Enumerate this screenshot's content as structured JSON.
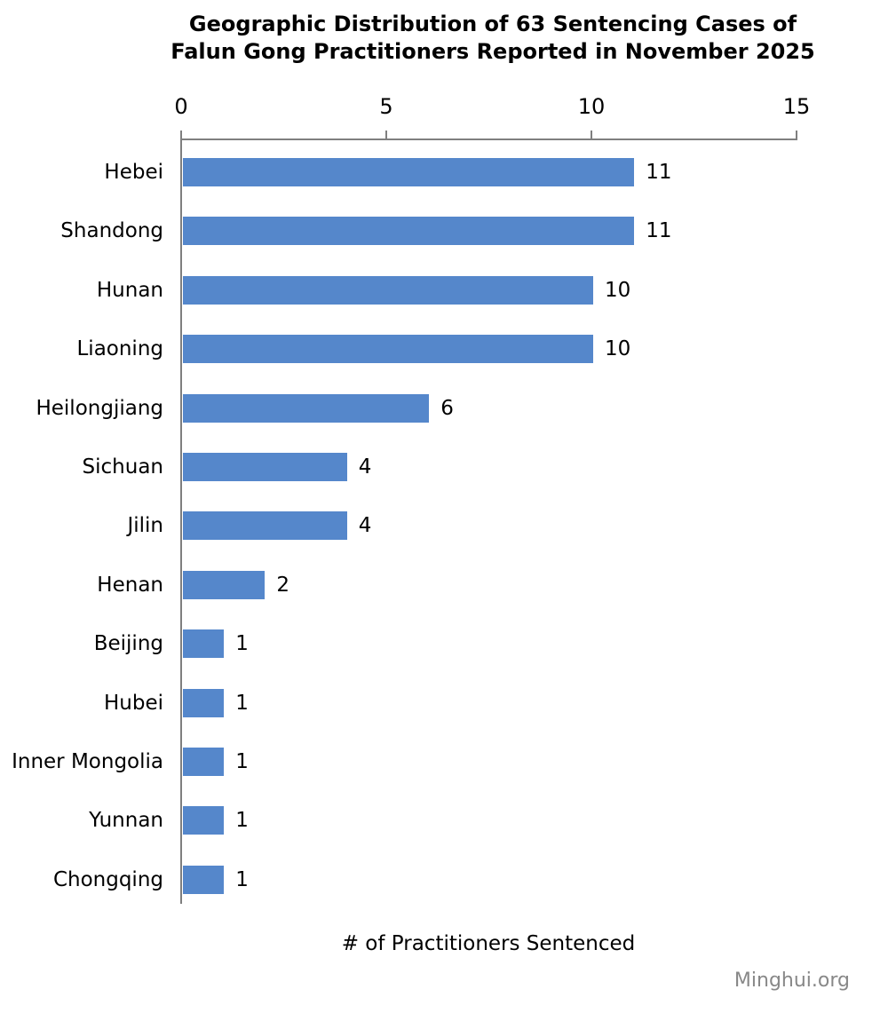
{
  "chart_data": {
    "type": "bar",
    "orientation": "horizontal",
    "title": "Geographic Distribution of 63 Sentencing Cases of Falun Gong Practitioners Reported in November 2025",
    "title_lines": [
      "Geographic Distribution of 63 Sentencing Cases of",
      "Falun Gong Practitioners Reported in November 2025"
    ],
    "categories": [
      "Hebei",
      "Shandong",
      "Hunan",
      "Liaoning",
      "Heilongjiang",
      "Sichuan",
      "Jilin",
      "Henan",
      "Beijing",
      "Hubei",
      "Inner Mongolia",
      "Yunnan",
      "Chongqing"
    ],
    "values": [
      11,
      11,
      10,
      10,
      6,
      4,
      4,
      2,
      1,
      1,
      1,
      1,
      1
    ],
    "xlabel": "# of Practitioners Sentenced",
    "xlim": [
      0,
      15
    ],
    "xticks": [
      0,
      5,
      10,
      15
    ],
    "xaxis_position": "top",
    "grid": false,
    "legend": false,
    "value_labels_shown": true,
    "bar_color": "#5587cb",
    "axis_color": "#7f7f7f",
    "text_color": "#000000"
  },
  "watermark": {
    "text": "Minghui.org",
    "color": "#888888"
  }
}
